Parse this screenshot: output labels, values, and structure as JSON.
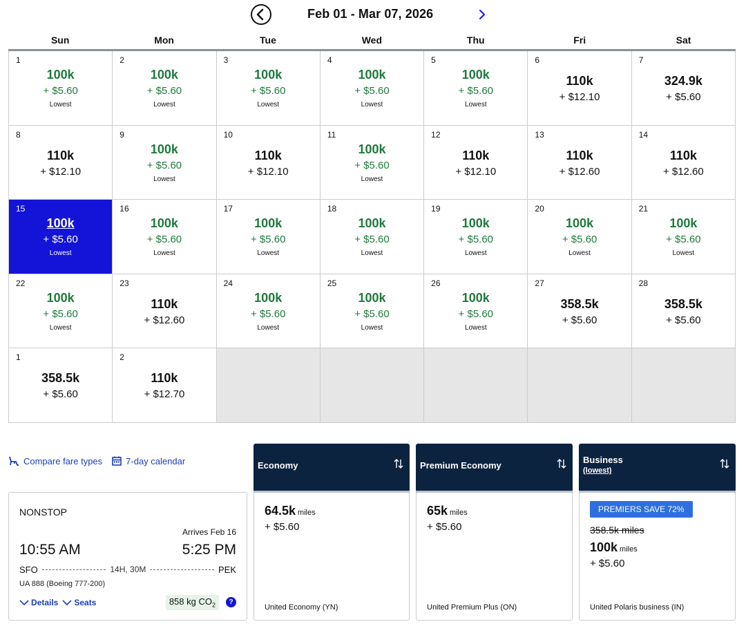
{
  "calendar": {
    "range_title": "Feb 01 - Mar 07, 2026",
    "days_of_week": [
      "Sun",
      "Mon",
      "Tue",
      "Wed",
      "Thu",
      "Fri",
      "Sat"
    ],
    "lowest_label": "Lowest",
    "weeks": [
      [
        {
          "day": "1",
          "miles": "100k",
          "tax": "+ $5.60",
          "lowest": true
        },
        {
          "day": "2",
          "miles": "100k",
          "tax": "+ $5.60",
          "lowest": true
        },
        {
          "day": "3",
          "miles": "100k",
          "tax": "+ $5.60",
          "lowest": true
        },
        {
          "day": "4",
          "miles": "100k",
          "tax": "+ $5.60",
          "lowest": true
        },
        {
          "day": "5",
          "miles": "100k",
          "tax": "+ $5.60",
          "lowest": true
        },
        {
          "day": "6",
          "miles": "110k",
          "tax": "+ $12.10",
          "lowest": false
        },
        {
          "day": "7",
          "miles": "324.9k",
          "tax": "+ $5.60",
          "lowest": false
        }
      ],
      [
        {
          "day": "8",
          "miles": "110k",
          "tax": "+ $12.10",
          "lowest": false
        },
        {
          "day": "9",
          "miles": "100k",
          "tax": "+ $5.60",
          "lowest": true
        },
        {
          "day": "10",
          "miles": "110k",
          "tax": "+ $12.10",
          "lowest": false
        },
        {
          "day": "11",
          "miles": "100k",
          "tax": "+ $5.60",
          "lowest": true
        },
        {
          "day": "12",
          "miles": "110k",
          "tax": "+ $12.10",
          "lowest": false
        },
        {
          "day": "13",
          "miles": "110k",
          "tax": "+ $12.60",
          "lowest": false
        },
        {
          "day": "14",
          "miles": "110k",
          "tax": "+ $12.60",
          "lowest": false
        }
      ],
      [
        {
          "day": "15",
          "miles": "100k",
          "tax": "+ $5.60",
          "lowest": true,
          "selected": true
        },
        {
          "day": "16",
          "miles": "100k",
          "tax": "+ $5.60",
          "lowest": true
        },
        {
          "day": "17",
          "miles": "100k",
          "tax": "+ $5.60",
          "lowest": true
        },
        {
          "day": "18",
          "miles": "100k",
          "tax": "+ $5.60",
          "lowest": true
        },
        {
          "day": "19",
          "miles": "100k",
          "tax": "+ $5.60",
          "lowest": true
        },
        {
          "day": "20",
          "miles": "100k",
          "tax": "+ $5.60",
          "lowest": true
        },
        {
          "day": "21",
          "miles": "100k",
          "tax": "+ $5.60",
          "lowest": true
        }
      ],
      [
        {
          "day": "22",
          "miles": "100k",
          "tax": "+ $5.60",
          "lowest": true
        },
        {
          "day": "23",
          "miles": "110k",
          "tax": "+ $12.60",
          "lowest": false
        },
        {
          "day": "24",
          "miles": "100k",
          "tax": "+ $5.60",
          "lowest": true
        },
        {
          "day": "25",
          "miles": "100k",
          "tax": "+ $5.60",
          "lowest": true
        },
        {
          "day": "26",
          "miles": "100k",
          "tax": "+ $5.60",
          "lowest": true
        },
        {
          "day": "27",
          "miles": "358.5k",
          "tax": "+ $5.60",
          "lowest": false
        },
        {
          "day": "28",
          "miles": "358.5k",
          "tax": "+ $5.60",
          "lowest": false
        }
      ],
      [
        {
          "day": "1",
          "miles": "358.5k",
          "tax": "+ $5.60",
          "lowest": false
        },
        {
          "day": "2",
          "miles": "110k",
          "tax": "+ $12.70",
          "lowest": false
        },
        null,
        null,
        null,
        null,
        null
      ]
    ]
  },
  "links": {
    "compare": {
      "label": "Compare fare types",
      "icon": "seat-icon"
    },
    "seven_day": {
      "label": "7-day calendar",
      "icon": "calendar-icon"
    }
  },
  "flight": {
    "type": "NONSTOP",
    "arrives_note": "Arrives Feb 16",
    "depart_time": "10:55 AM",
    "arrive_time": "5:25 PM",
    "origin": "SFO",
    "destination": "PEK",
    "duration": "14H, 30M",
    "flight_info": "UA 888 (Boeing 777-200)",
    "details_label": "Details",
    "seats_label": "Seats",
    "co2_value": "858 kg CO",
    "co2_sub": "2",
    "help_icon": "?"
  },
  "fares": [
    {
      "header": "Economy",
      "miles": "64.5k",
      "unit": "miles",
      "tax": "+ $5.60",
      "class": "United Economy (YN)"
    },
    {
      "header": "Premium Economy",
      "miles": "65k",
      "unit": "miles",
      "tax": "+ $5.60",
      "class": "United Premium Plus (ON)"
    },
    {
      "header": "Business",
      "header_sub": "(lowest)",
      "promo": "PREMIERS SAVE 72%",
      "old_miles": "358.5k miles",
      "miles": "100k",
      "unit": "miles",
      "tax": "+ $5.60",
      "class": "United Polaris business (IN)"
    }
  ],
  "colors": {
    "accent": "#1414d8",
    "lowest_green": "#1e7a3b",
    "header_navy": "#0c2340",
    "link_blue": "#1a3fb8"
  }
}
